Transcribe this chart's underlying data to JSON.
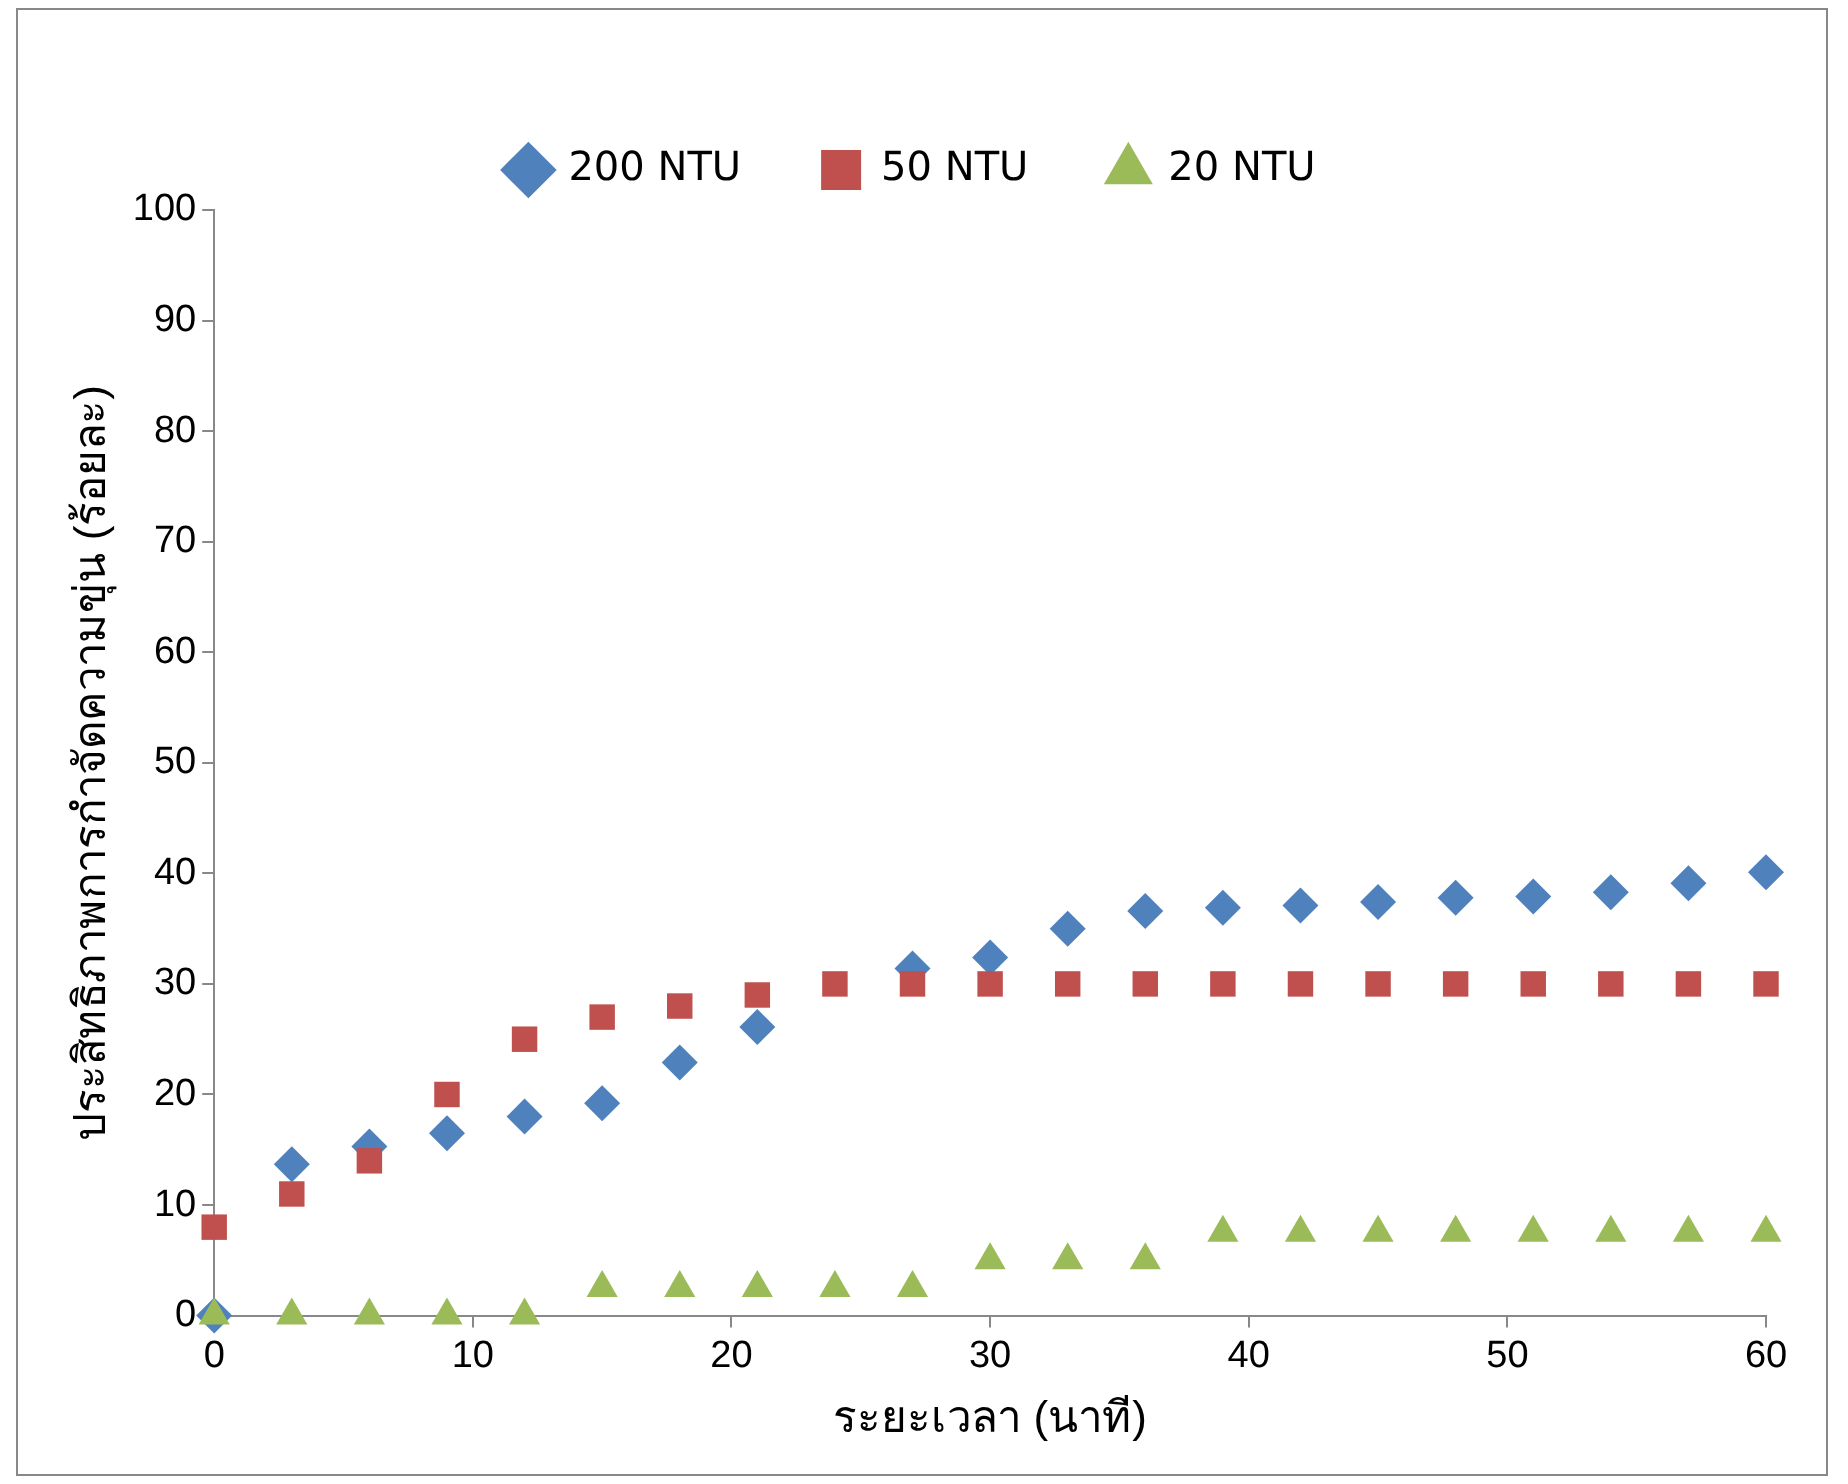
{
  "chart_data": {
    "type": "scatter",
    "xlabel": "ระยะเวลา (นาที)",
    "ylabel": "ประสิทธิภาพการกำจัดความขุ่น (ร้อยละ)",
    "x": [
      0,
      3,
      6,
      9,
      12,
      15,
      18,
      21,
      24,
      27,
      30,
      33,
      36,
      39,
      42,
      45,
      48,
      51,
      54,
      57,
      60
    ],
    "series": [
      {
        "name": "200 NTU",
        "color": "#4f81bd",
        "marker": "diamond",
        "values": [
          0,
          13.7,
          15.3,
          16.5,
          18,
          19.2,
          22.9,
          26.1,
          null,
          31.4,
          32.4,
          35,
          36.6,
          36.9,
          37.1,
          37.4,
          37.8,
          37.9,
          38.3,
          39.1,
          40.1
        ]
      },
      {
        "name": "50 NTU",
        "color": "#c0504d",
        "marker": "square",
        "values": [
          8,
          11,
          14,
          20,
          25,
          27,
          28,
          29,
          30,
          30,
          30,
          30,
          30,
          30,
          30,
          30,
          30,
          30,
          30,
          30,
          30
        ]
      },
      {
        "name": "20 NTU",
        "color": "#9bbb59",
        "marker": "triangle",
        "values": [
          0,
          0,
          0,
          0,
          0,
          2.5,
          2.5,
          2.5,
          2.5,
          2.5,
          5,
          5,
          5,
          7.5,
          7.5,
          7.5,
          7.5,
          7.5,
          7.5,
          7.5,
          7.5
        ]
      }
    ],
    "xlim": [
      0,
      60
    ],
    "xticks": [
      0,
      10,
      20,
      30,
      40,
      50,
      60
    ],
    "ylim": [
      0,
      100
    ],
    "yticks": [
      0,
      10,
      20,
      30,
      40,
      50,
      60,
      70,
      80,
      90,
      100
    ],
    "grid": false,
    "legend": "top"
  }
}
